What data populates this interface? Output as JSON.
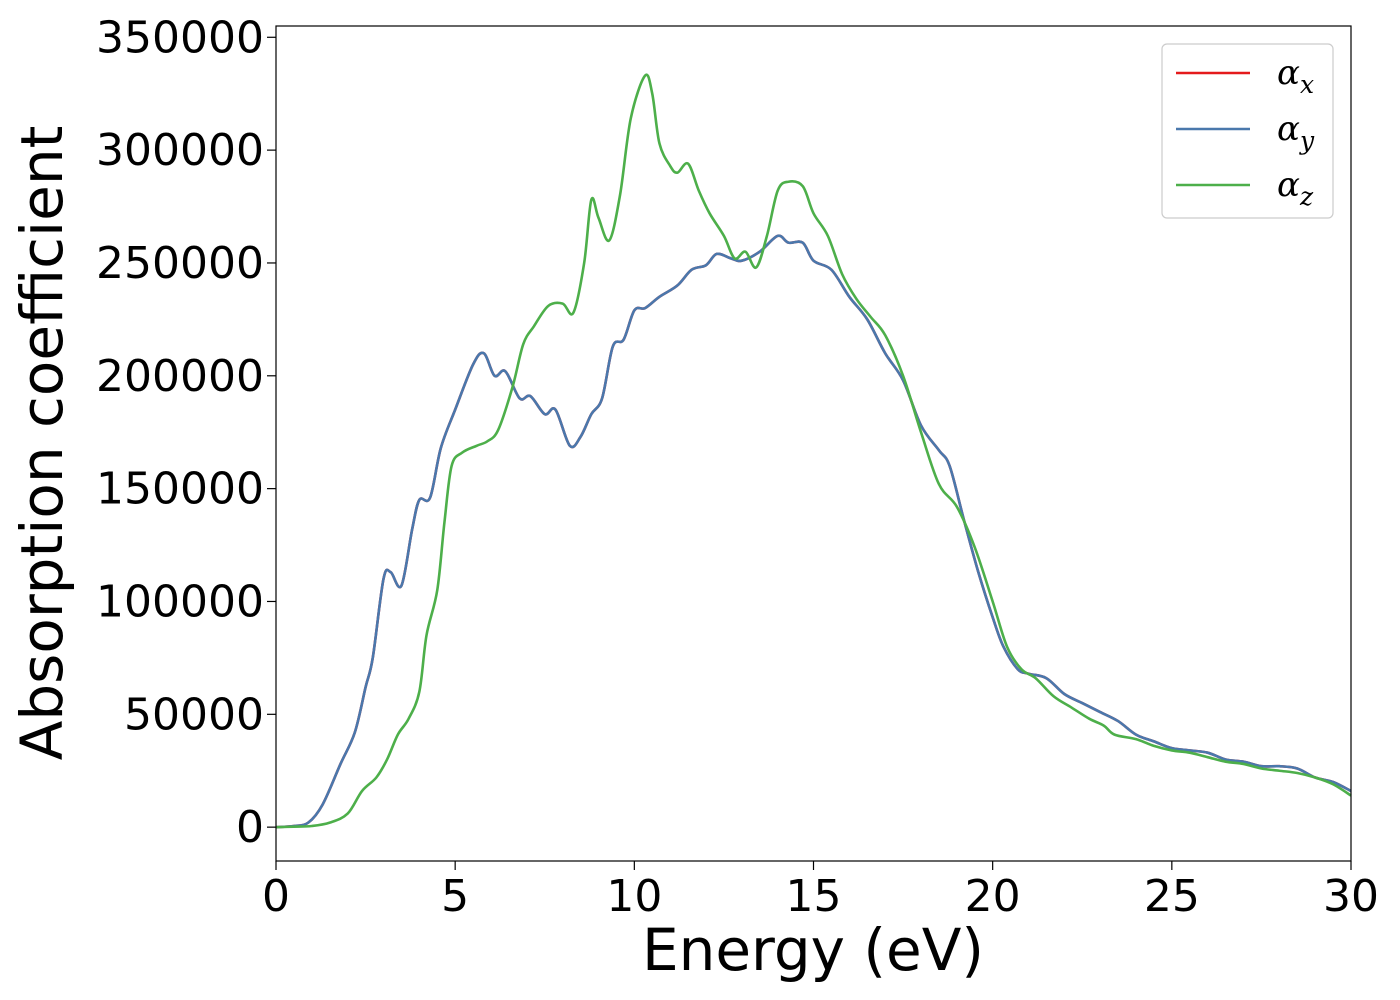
{
  "chart_data": {
    "type": "line",
    "xlabel": "Energy (eV)",
    "ylabel": "Absorption coefficient",
    "xlim": [
      0,
      30
    ],
    "ylim": [
      -15000,
      355000
    ],
    "xticks": [
      0,
      5,
      10,
      15,
      20,
      25,
      30
    ],
    "yticks": [
      0,
      50000,
      100000,
      150000,
      200000,
      250000,
      300000,
      350000
    ],
    "x_tick_labels": [
      "0",
      "5",
      "10",
      "15",
      "20",
      "25",
      "30"
    ],
    "y_tick_labels": [
      "0",
      "50000",
      "100000",
      "150000",
      "200000",
      "250000",
      "300000",
      "350000"
    ],
    "grid": false,
    "legend_position": "top-right",
    "series": [
      {
        "name": "α_x",
        "label_base": "α",
        "label_sub": "x",
        "color": "#e41a1c",
        "points": [
          [
            0,
            0
          ],
          [
            0.5,
            500
          ],
          [
            0.9,
            2000
          ],
          [
            1.3,
            10000
          ],
          [
            1.8,
            28000
          ],
          [
            2.2,
            42000
          ],
          [
            2.5,
            62000
          ],
          [
            2.7,
            75000
          ],
          [
            3.0,
            110000
          ],
          [
            3.2,
            113000
          ],
          [
            3.5,
            107000
          ],
          [
            3.8,
            132000
          ],
          [
            4.0,
            145000
          ],
          [
            4.3,
            146000
          ],
          [
            4.6,
            168000
          ],
          [
            5.0,
            185000
          ],
          [
            5.5,
            205000
          ],
          [
            5.8,
            210000
          ],
          [
            6.1,
            200000
          ],
          [
            6.4,
            202000
          ],
          [
            6.8,
            190000
          ],
          [
            7.1,
            191000
          ],
          [
            7.5,
            183000
          ],
          [
            7.8,
            185000
          ],
          [
            8.2,
            169000
          ],
          [
            8.5,
            173000
          ],
          [
            8.8,
            183000
          ],
          [
            9.1,
            190000
          ],
          [
            9.4,
            213000
          ],
          [
            9.7,
            216000
          ],
          [
            10.0,
            229000
          ],
          [
            10.3,
            230000
          ],
          [
            10.7,
            235000
          ],
          [
            11.2,
            240000
          ],
          [
            11.6,
            247000
          ],
          [
            12.0,
            249000
          ],
          [
            12.3,
            254000
          ],
          [
            12.7,
            252000
          ],
          [
            13.0,
            251000
          ],
          [
            13.5,
            255000
          ],
          [
            14.0,
            262000
          ],
          [
            14.3,
            259000
          ],
          [
            14.7,
            259000
          ],
          [
            15.0,
            251000
          ],
          [
            15.5,
            247000
          ],
          [
            16.0,
            235000
          ],
          [
            16.5,
            225000
          ],
          [
            17.0,
            210000
          ],
          [
            17.5,
            198000
          ],
          [
            18.0,
            178000
          ],
          [
            18.5,
            167000
          ],
          [
            18.8,
            160000
          ],
          [
            19.2,
            136000
          ],
          [
            19.6,
            113000
          ],
          [
            20.0,
            93000
          ],
          [
            20.3,
            80000
          ],
          [
            20.7,
            70000
          ],
          [
            21.0,
            68000
          ],
          [
            21.5,
            66000
          ],
          [
            22.0,
            59000
          ],
          [
            22.5,
            55000
          ],
          [
            23.0,
            51000
          ],
          [
            23.5,
            47000
          ],
          [
            24.0,
            41000
          ],
          [
            24.5,
            38000
          ],
          [
            25.0,
            35000
          ],
          [
            25.5,
            34000
          ],
          [
            26.0,
            33000
          ],
          [
            26.5,
            30000
          ],
          [
            27.0,
            29000
          ],
          [
            27.5,
            27000
          ],
          [
            28.0,
            27000
          ],
          [
            28.5,
            26000
          ],
          [
            29.0,
            22000
          ],
          [
            29.5,
            20000
          ],
          [
            30.0,
            16000
          ]
        ]
      },
      {
        "name": "α_y",
        "label_base": "α",
        "label_sub": "y",
        "color": "#4a78ac",
        "points": [
          [
            0,
            0
          ],
          [
            0.5,
            500
          ],
          [
            0.9,
            2000
          ],
          [
            1.3,
            10000
          ],
          [
            1.8,
            28000
          ],
          [
            2.2,
            42000
          ],
          [
            2.5,
            62000
          ],
          [
            2.7,
            75000
          ],
          [
            3.0,
            110000
          ],
          [
            3.2,
            113000
          ],
          [
            3.5,
            107000
          ],
          [
            3.8,
            132000
          ],
          [
            4.0,
            145000
          ],
          [
            4.3,
            146000
          ],
          [
            4.6,
            168000
          ],
          [
            5.0,
            185000
          ],
          [
            5.5,
            205000
          ],
          [
            5.8,
            210000
          ],
          [
            6.1,
            200000
          ],
          [
            6.4,
            202000
          ],
          [
            6.8,
            190000
          ],
          [
            7.1,
            191000
          ],
          [
            7.5,
            183000
          ],
          [
            7.8,
            185000
          ],
          [
            8.2,
            169000
          ],
          [
            8.5,
            173000
          ],
          [
            8.8,
            183000
          ],
          [
            9.1,
            190000
          ],
          [
            9.4,
            213000
          ],
          [
            9.7,
            216000
          ],
          [
            10.0,
            229000
          ],
          [
            10.3,
            230000
          ],
          [
            10.7,
            235000
          ],
          [
            11.2,
            240000
          ],
          [
            11.6,
            247000
          ],
          [
            12.0,
            249000
          ],
          [
            12.3,
            254000
          ],
          [
            12.7,
            252000
          ],
          [
            13.0,
            251000
          ],
          [
            13.5,
            255000
          ],
          [
            14.0,
            262000
          ],
          [
            14.3,
            259000
          ],
          [
            14.7,
            259000
          ],
          [
            15.0,
            251000
          ],
          [
            15.5,
            247000
          ],
          [
            16.0,
            235000
          ],
          [
            16.5,
            225000
          ],
          [
            17.0,
            210000
          ],
          [
            17.5,
            198000
          ],
          [
            18.0,
            178000
          ],
          [
            18.5,
            167000
          ],
          [
            18.8,
            160000
          ],
          [
            19.2,
            136000
          ],
          [
            19.6,
            113000
          ],
          [
            20.0,
            93000
          ],
          [
            20.3,
            80000
          ],
          [
            20.7,
            70000
          ],
          [
            21.0,
            68000
          ],
          [
            21.5,
            66000
          ],
          [
            22.0,
            59000
          ],
          [
            22.5,
            55000
          ],
          [
            23.0,
            51000
          ],
          [
            23.5,
            47000
          ],
          [
            24.0,
            41000
          ],
          [
            24.5,
            38000
          ],
          [
            25.0,
            35000
          ],
          [
            25.5,
            34000
          ],
          [
            26.0,
            33000
          ],
          [
            26.5,
            30000
          ],
          [
            27.0,
            29000
          ],
          [
            27.5,
            27000
          ],
          [
            28.0,
            27000
          ],
          [
            28.5,
            26000
          ],
          [
            29.0,
            22000
          ],
          [
            29.5,
            20000
          ],
          [
            30.0,
            16000
          ]
        ]
      },
      {
        "name": "α_z",
        "label_base": "α",
        "label_sub": "z",
        "color": "#4daf4a",
        "points": [
          [
            0,
            0
          ],
          [
            0.5,
            200
          ],
          [
            1.0,
            500
          ],
          [
            1.5,
            2000
          ],
          [
            2.0,
            6000
          ],
          [
            2.4,
            16000
          ],
          [
            2.8,
            22000
          ],
          [
            3.1,
            30000
          ],
          [
            3.4,
            41000
          ],
          [
            3.7,
            48000
          ],
          [
            4.0,
            60000
          ],
          [
            4.2,
            85000
          ],
          [
            4.5,
            105000
          ],
          [
            4.7,
            135000
          ],
          [
            4.9,
            160000
          ],
          [
            5.2,
            166000
          ],
          [
            5.6,
            169000
          ],
          [
            5.9,
            171000
          ],
          [
            6.2,
            176000
          ],
          [
            6.6,
            195000
          ],
          [
            6.9,
            214000
          ],
          [
            7.2,
            222000
          ],
          [
            7.6,
            231000
          ],
          [
            8.0,
            232000
          ],
          [
            8.3,
            228000
          ],
          [
            8.6,
            250000
          ],
          [
            8.8,
            278000
          ],
          [
            9.0,
            270000
          ],
          [
            9.3,
            260000
          ],
          [
            9.6,
            280000
          ],
          [
            9.9,
            314000
          ],
          [
            10.3,
            333000
          ],
          [
            10.5,
            325000
          ],
          [
            10.7,
            303000
          ],
          [
            11.0,
            293000
          ],
          [
            11.2,
            290000
          ],
          [
            11.5,
            294000
          ],
          [
            11.8,
            282000
          ],
          [
            12.1,
            272000
          ],
          [
            12.5,
            262000
          ],
          [
            12.8,
            252000
          ],
          [
            13.1,
            255000
          ],
          [
            13.4,
            248000
          ],
          [
            13.7,
            262000
          ],
          [
            14.0,
            282000
          ],
          [
            14.3,
            286000
          ],
          [
            14.7,
            284000
          ],
          [
            15.0,
            272000
          ],
          [
            15.4,
            262000
          ],
          [
            15.8,
            245000
          ],
          [
            16.2,
            234000
          ],
          [
            16.6,
            226000
          ],
          [
            17.0,
            218000
          ],
          [
            17.5,
            200000
          ],
          [
            18.0,
            175000
          ],
          [
            18.5,
            152000
          ],
          [
            19.0,
            142000
          ],
          [
            19.5,
            124000
          ],
          [
            20.0,
            100000
          ],
          [
            20.4,
            80000
          ],
          [
            20.8,
            70000
          ],
          [
            21.2,
            66000
          ],
          [
            21.7,
            58000
          ],
          [
            22.2,
            53000
          ],
          [
            22.7,
            48000
          ],
          [
            23.1,
            45000
          ],
          [
            23.4,
            41000
          ],
          [
            24.0,
            39000
          ],
          [
            24.5,
            36000
          ],
          [
            25.0,
            34000
          ],
          [
            25.5,
            33000
          ],
          [
            26.0,
            31000
          ],
          [
            26.5,
            29000
          ],
          [
            27.0,
            28000
          ],
          [
            27.5,
            26000
          ],
          [
            28.0,
            25000
          ],
          [
            28.5,
            24000
          ],
          [
            29.0,
            22000
          ],
          [
            29.5,
            19000
          ],
          [
            30.0,
            14000
          ]
        ]
      }
    ]
  }
}
